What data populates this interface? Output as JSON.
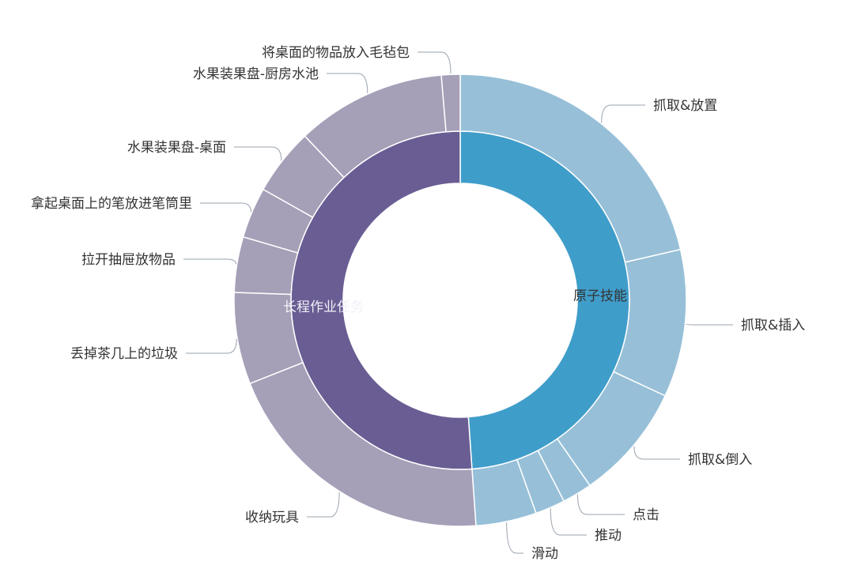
{
  "chart_data": {
    "type": "pie",
    "subtype": "nested-donut",
    "title": "",
    "inner": [
      {
        "name": "原子技能",
        "value": 176,
        "color": "#3f9dca"
      },
      {
        "name": "长程作业任务",
        "value": 184,
        "color": "#6a5d93"
      }
    ],
    "outer": [
      {
        "name": "抓取&放置",
        "parent": "原子技能",
        "value": 77,
        "color": "#97c0d8"
      },
      {
        "name": "抓取&插入",
        "parent": "原子技能",
        "value": 38,
        "color": "#97c0d8"
      },
      {
        "name": "抓取&倒入",
        "parent": "原子技能",
        "value": 30,
        "color": "#97c0d8"
      },
      {
        "name": "点击",
        "parent": "原子技能",
        "value": 7.7,
        "color": "#97c0d8"
      },
      {
        "name": "推动",
        "parent": "原子技能",
        "value": 7.7,
        "color": "#97c0d8"
      },
      {
        "name": "滑动",
        "parent": "原子技能",
        "value": 15.6,
        "color": "#97c0d8"
      },
      {
        "name": "收纳玩具",
        "parent": "长程作业任务",
        "value": 72.4,
        "color": "#a69fb8"
      },
      {
        "name": "丢掉茶几上的垃圾",
        "parent": "长程作业任务",
        "value": 23.6,
        "color": "#a69fb8"
      },
      {
        "name": "拉开抽屉放物品",
        "parent": "长程作业任务",
        "value": 14.3,
        "color": "#a69fb8"
      },
      {
        "name": "拿起桌面上的笔放进笔筒里",
        "parent": "长程作业任务",
        "value": 13.1,
        "color": "#a69fb8"
      },
      {
        "name": "水果装果盘-桌面",
        "parent": "长程作业任务",
        "value": 17.2,
        "color": "#a69fb8"
      },
      {
        "name": "水果装果盘-厨房水池",
        "parent": "长程作业任务",
        "value": 38.6,
        "color": "#a69fb8"
      },
      {
        "name": "将桌面的物品放入毛毡包",
        "parent": "长程作业任务",
        "value": 4.8,
        "color": "#a69fb8"
      }
    ],
    "start_angle": "top, clockwise",
    "legend": "none"
  }
}
